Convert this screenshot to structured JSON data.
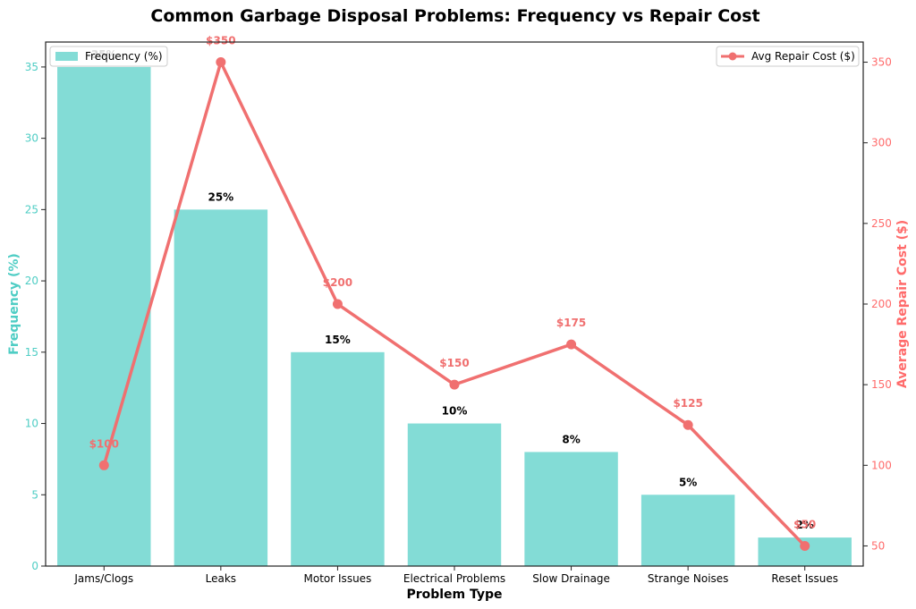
{
  "chart_data": {
    "type": "bar",
    "title": "Common Garbage Disposal Problems: Frequency vs Repair Cost",
    "xlabel": "Problem Type",
    "ylabel": "Frequency (%)",
    "ylabel_right": "Average Repair Cost ($)",
    "categories": [
      "Jams/Clogs",
      "Leaks",
      "Motor Issues",
      "Electrical Problems",
      "Slow Drainage",
      "Strange Noises",
      "Reset Issues"
    ],
    "series": [
      {
        "name": "Frequency (%)",
        "type": "bar",
        "axis": "left",
        "color": "#4ECDC4",
        "values": [
          35,
          25,
          15,
          10,
          8,
          5,
          2
        ],
        "labels": [
          "35%",
          "25%",
          "15%",
          "10%",
          "8%",
          "5%",
          "2%"
        ]
      },
      {
        "name": "Avg Repair Cost ($)",
        "type": "line",
        "axis": "right",
        "color": "#FF6B6B",
        "values": [
          100,
          350,
          200,
          150,
          175,
          125,
          50
        ],
        "labels": [
          "$100",
          "$350",
          "$200",
          "$150",
          "$175",
          "$125",
          "$50"
        ]
      }
    ],
    "ylim": [
      0,
      36.75
    ],
    "ylim_right": [
      37.5,
      362.5
    ],
    "yticks": [
      0,
      5,
      10,
      15,
      20,
      25,
      30,
      35
    ],
    "yticks_right": [
      50,
      100,
      150,
      200,
      250,
      300,
      350
    ],
    "legend": [
      {
        "label": "Frequency (%)",
        "placement": "top-left"
      },
      {
        "label": "Avg Repair Cost ($)",
        "placement": "top-right"
      }
    ],
    "grid": false
  }
}
